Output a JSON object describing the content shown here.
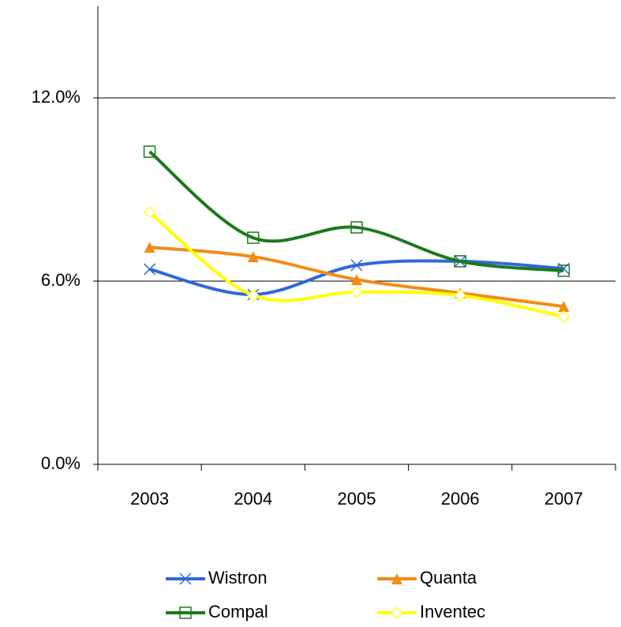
{
  "chart_data": {
    "type": "line",
    "categories": [
      "2003",
      "2004",
      "2005",
      "2006",
      "2007"
    ],
    "series": [
      {
        "name": "Wistron",
        "color": "#3366dd",
        "marker": "x",
        "values": [
          6.39,
          5.56,
          6.52,
          6.65,
          6.41
        ]
      },
      {
        "name": "Quanta",
        "color": "#f28c13",
        "marker": "triangle",
        "values": [
          7.11,
          6.8,
          6.05,
          5.61,
          5.17
        ]
      },
      {
        "name": "Compal",
        "color": "#1a7a1a",
        "marker": "square",
        "values": [
          10.24,
          7.42,
          7.76,
          6.65,
          6.34
        ]
      },
      {
        "name": "Inventec",
        "color": "#ffff00",
        "marker": "diamond",
        "values": [
          8.25,
          5.53,
          5.64,
          5.53,
          4.84
        ]
      }
    ],
    "ylim": [
      0,
      15
    ],
    "yticks": [
      {
        "value": 0,
        "label": "0.0%"
      },
      {
        "value": 6,
        "label": "6.0%"
      },
      {
        "value": 12,
        "label": "12.0%"
      }
    ],
    "grid": true,
    "smooth": true,
    "legend": "bottom"
  }
}
